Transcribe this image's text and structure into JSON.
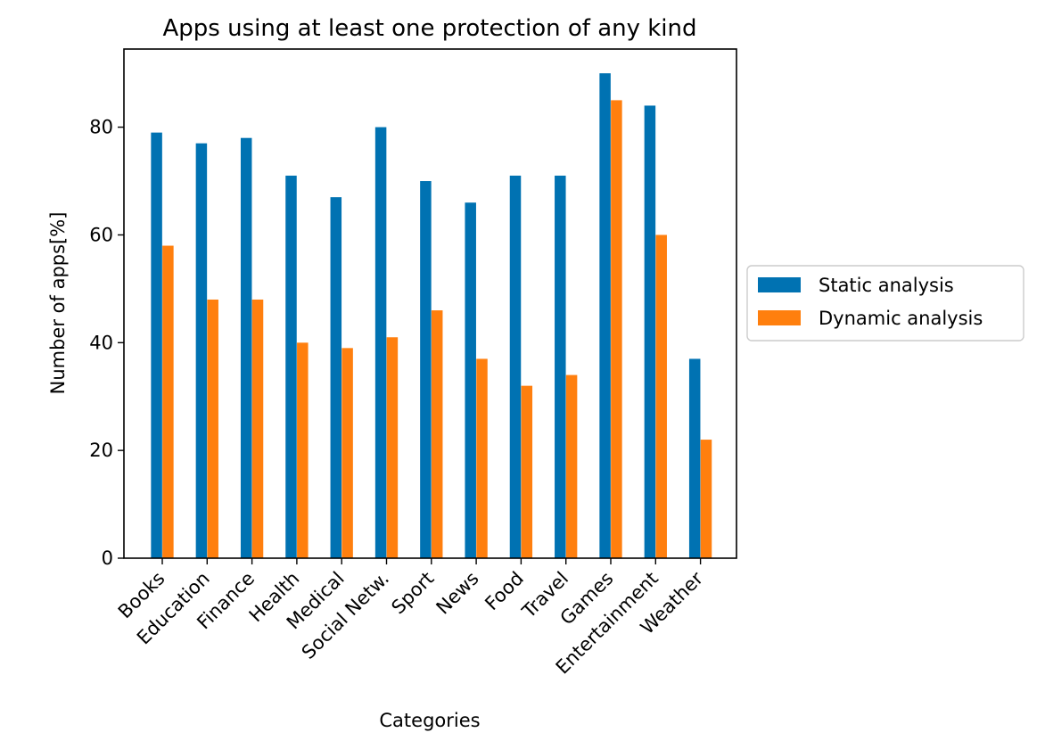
{
  "chart_data": {
    "type": "bar",
    "title": "Apps using at least one protection of any kind",
    "xlabel": "Categories",
    "ylabel": "Number of apps[%]",
    "categories": [
      "Books",
      "Education",
      "Finance",
      "Health",
      "Medical",
      "Social Netw.",
      "Sport",
      "News",
      "Food",
      "Travel",
      "Games",
      "Entertainment",
      "Weather"
    ],
    "series": [
      {
        "name": "Static analysis",
        "color": "#0072b2",
        "values": [
          79,
          77,
          78,
          71,
          67,
          80,
          70,
          66,
          71,
          71,
          90,
          84,
          37
        ]
      },
      {
        "name": "Dynamic analysis",
        "color": "#ff7f0e",
        "values": [
          58,
          48,
          48,
          40,
          39,
          41,
          46,
          37,
          32,
          34,
          85,
          60,
          22
        ]
      }
    ],
    "ylim": [
      0,
      94.5
    ],
    "yticks": [
      0,
      20,
      40,
      60,
      80
    ],
    "grid": false,
    "legend_position": "right"
  }
}
